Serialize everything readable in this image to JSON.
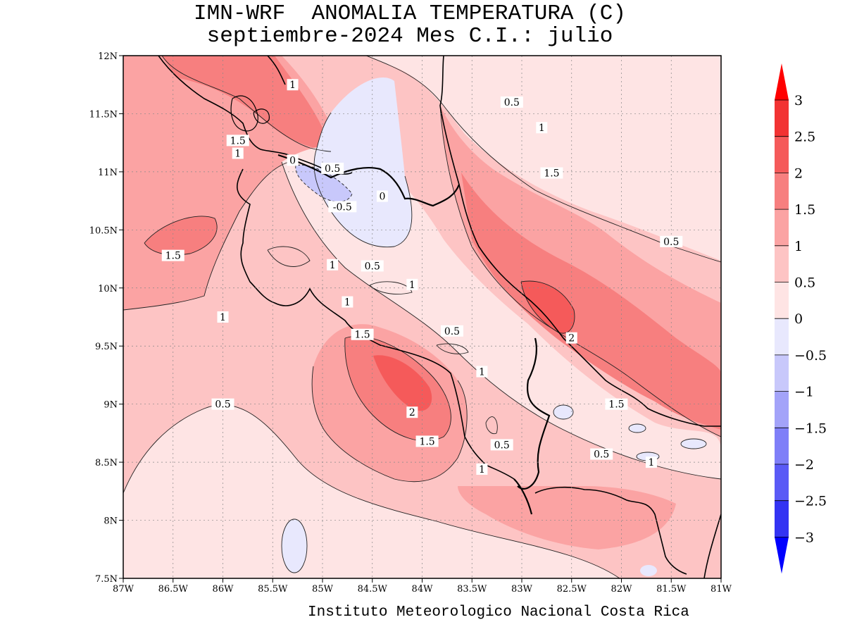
{
  "header": {
    "title_line1": "IMN-WRF  ANOMALIA TEMPERATURA (C)",
    "title_line2": "septiembre-2024 Mes C.I.: julio"
  },
  "footer": {
    "credit": "Instituto Meteorologico Nacional Costa Rica"
  },
  "map": {
    "x_range": [
      -87,
      -81
    ],
    "y_range": [
      7.5,
      12
    ],
    "lon_ticks": [
      "87W",
      "86.5W",
      "86W",
      "85.5W",
      "85W",
      "84.5W",
      "84W",
      "83.5W",
      "83W",
      "82.5W",
      "82W",
      "81.5W",
      "81W"
    ],
    "lat_ticks": [
      "7.5N",
      "8N",
      "8.5N",
      "9N",
      "9.5N",
      "10N",
      "10.5N",
      "11N",
      "11.5N",
      "12N"
    ],
    "contour_labels": [
      {
        "text": "1",
        "lon": -85.3,
        "lat": 11.75
      },
      {
        "text": "0.5",
        "lon": -83.1,
        "lat": 11.6
      },
      {
        "text": "1",
        "lon": -82.8,
        "lat": 11.38
      },
      {
        "text": "1.5",
        "lon": -85.85,
        "lat": 11.27
      },
      {
        "text": "1",
        "lon": -85.85,
        "lat": 11.16
      },
      {
        "text": "0",
        "lon": -85.3,
        "lat": 11.1
      },
      {
        "text": "0.5",
        "lon": -84.9,
        "lat": 11.03
      },
      {
        "text": "1.5",
        "lon": -82.7,
        "lat": 10.99
      },
      {
        "text": "0",
        "lon": -84.4,
        "lat": 10.79
      },
      {
        "text": "-0.5",
        "lon": -84.8,
        "lat": 10.7
      },
      {
        "text": "0.5",
        "lon": -81.5,
        "lat": 10.4
      },
      {
        "text": "1.5",
        "lon": -86.5,
        "lat": 10.28
      },
      {
        "text": "1",
        "lon": -84.9,
        "lat": 10.2
      },
      {
        "text": "0.5",
        "lon": -84.5,
        "lat": 10.19
      },
      {
        "text": "1",
        "lon": -84.1,
        "lat": 10.03
      },
      {
        "text": "1",
        "lon": -84.75,
        "lat": 9.88
      },
      {
        "text": "1",
        "lon": -86.0,
        "lat": 9.75
      },
      {
        "text": "0.5",
        "lon": -83.7,
        "lat": 9.63
      },
      {
        "text": "1.5",
        "lon": -84.6,
        "lat": 9.6
      },
      {
        "text": "2",
        "lon": -82.5,
        "lat": 9.57
      },
      {
        "text": "1",
        "lon": -83.4,
        "lat": 9.28
      },
      {
        "text": "0.5",
        "lon": -86.0,
        "lat": 9.0
      },
      {
        "text": "1.5",
        "lon": -82.05,
        "lat": 9.0
      },
      {
        "text": "2",
        "lon": -84.1,
        "lat": 8.93
      },
      {
        "text": "1.5",
        "lon": -83.95,
        "lat": 8.68
      },
      {
        "text": "0.5",
        "lon": -83.2,
        "lat": 8.65
      },
      {
        "text": "0.5",
        "lon": -82.2,
        "lat": 8.57
      },
      {
        "text": "1",
        "lon": -81.7,
        "lat": 8.5
      },
      {
        "text": "1",
        "lon": -83.4,
        "lat": 8.44
      }
    ]
  },
  "colorbar": {
    "levels": [
      "3",
      "2.5",
      "2",
      "1.5",
      "1",
      "0.5",
      "0",
      "−0.5",
      "−1",
      "−1.5",
      "−2",
      "−2.5",
      "−3"
    ],
    "colors_top_to_bottom": [
      "#ff0000",
      "#f23333",
      "#f55a5a",
      "#f77f7f",
      "#fba3a3",
      "#fdc4c4",
      "#fee4e4",
      "#e8e8fd",
      "#c8c8fb",
      "#a3a3f9",
      "#7f7ff8",
      "#5a5af6",
      "#3333f3",
      "#0000ff"
    ]
  }
}
